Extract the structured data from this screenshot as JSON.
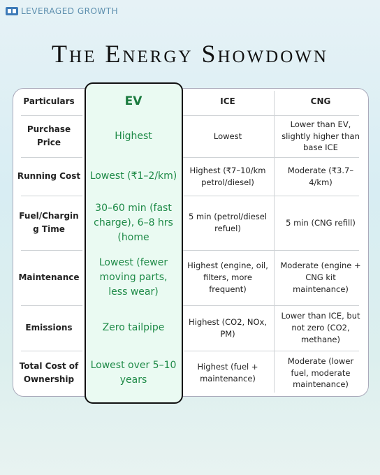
{
  "brand": "LEVERAGED GROWTH",
  "title": "The Energy Showdown",
  "table": {
    "header": [
      "Particulars",
      "EV",
      "ICE",
      "CNG"
    ],
    "rows": [
      [
        "Purchase Price",
        "Highest",
        "Lowest",
        "Lower than EV, slightly higher than base ICE"
      ],
      [
        "Running Cost",
        "Lowest (₹1–2/km)",
        "Highest (₹7–10/km petrol/diesel)",
        "Moderate (₹3.7–4/km)"
      ],
      [
        "Fuel/Charging Time",
        "30–60 min (fast charge), 6–8 hrs (home",
        "5 min (petrol/diesel refuel)",
        "5 min (CNG refill)"
      ],
      [
        "Maintenance",
        "Lowest (fewer moving parts, less wear)",
        "Highest (engine, oil, filters, more frequent)",
        "Moderate (engine + CNG kit maintenance)"
      ],
      [
        "Emissions",
        "Zero tailpipe",
        "Highest (CO2, NOx, PM)",
        "Lower than ICE, but not zero (CO2, methane)"
      ],
      [
        "Total Cost of Ownership",
        "Lowest over 5–10 years",
        "Highest (fuel + maintenance)",
        "Moderate (lower fuel, moderate maintenance)"
      ]
    ]
  }
}
